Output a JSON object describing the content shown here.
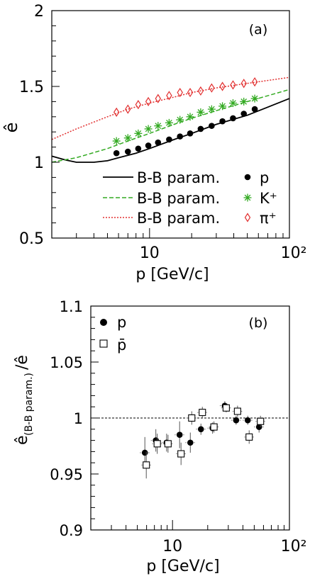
{
  "chart_data": [
    {
      "type": "line",
      "panel_label": "(a)",
      "xlabel": "p [GeV/c]",
      "ylabel": "ê",
      "x_scale": "log",
      "xlim": [
        2,
        100
      ],
      "ylim": [
        0.5,
        2
      ],
      "x_tick_labels": [
        "10",
        "10²"
      ],
      "y_tick_labels": [
        "0.5",
        "1",
        "1.5",
        "2"
      ],
      "legend_position": "bottom-right",
      "legend": [
        {
          "line_label": "B-B param.",
          "marker_label": "p",
          "color": "#000000",
          "line_style": "solid",
          "marker": "filled-circle"
        },
        {
          "line_label": "B-B param.",
          "marker_label": "K⁺",
          "color": "#33aa22",
          "line_style": "dashed",
          "marker": "star"
        },
        {
          "line_label": "B-B param.",
          "marker_label": "π⁺",
          "color": "#e23030",
          "line_style": "dotted",
          "marker": "open-diamond"
        }
      ],
      "series": [
        {
          "name": "p",
          "color": "#000000",
          "curve": {
            "x": [
              2,
              2.5,
              3,
              3.5,
              4,
              5,
              6,
              8,
              10,
              15,
              20,
              30,
              50,
              100
            ],
            "y": [
              1.04,
              1.015,
              1.0,
              1.0,
              1.0,
              1.01,
              1.03,
              1.06,
              1.09,
              1.15,
              1.19,
              1.25,
              1.31,
              1.42
            ]
          },
          "points": {
            "x": [
              5.8,
              7.0,
              8.3,
              9.8,
              11.5,
              13.8,
              16.5,
              19.5,
              23.2,
              27.8,
              33.2,
              39.5,
              47.2,
              56.5
            ],
            "y": [
              1.06,
              1.07,
              1.09,
              1.11,
              1.13,
              1.15,
              1.17,
              1.19,
              1.22,
              1.24,
              1.27,
              1.29,
              1.32,
              1.35
            ]
          }
        },
        {
          "name": "K⁺",
          "color": "#33aa22",
          "curve": {
            "x": [
              2,
              3,
              5,
              7,
              10,
              15,
              20,
              30,
              50,
              100
            ],
            "y": [
              1.0,
              1.03,
              1.09,
              1.14,
              1.19,
              1.25,
              1.29,
              1.34,
              1.4,
              1.48
            ]
          },
          "points": {
            "x": [
              5.8,
              7.0,
              8.3,
              9.8,
              11.5,
              13.8,
              16.5,
              19.5,
              23.2,
              27.8,
              33.2,
              39.5,
              47.2,
              56.5
            ],
            "y": [
              1.14,
              1.16,
              1.19,
              1.22,
              1.24,
              1.26,
              1.28,
              1.3,
              1.33,
              1.35,
              1.37,
              1.39,
              1.4,
              1.42
            ]
          }
        },
        {
          "name": "π⁺",
          "color": "#e23030",
          "curve": {
            "x": [
              2,
              3,
              5,
              7,
              10,
              15,
              20,
              30,
              50,
              100
            ],
            "y": [
              1.15,
              1.22,
              1.3,
              1.35,
              1.39,
              1.43,
              1.46,
              1.49,
              1.52,
              1.56
            ]
          },
          "points": {
            "x": [
              5.8,
              7.0,
              8.3,
              9.8,
              11.5,
              13.8,
              16.5,
              19.5,
              23.2,
              27.8,
              33.2,
              39.5,
              47.2,
              56.5
            ],
            "y": [
              1.33,
              1.35,
              1.38,
              1.4,
              1.42,
              1.44,
              1.46,
              1.46,
              1.47,
              1.49,
              1.5,
              1.51,
              1.52,
              1.53
            ]
          }
        }
      ]
    },
    {
      "type": "scatter",
      "panel_label": "(b)",
      "xlabel": "p [GeV/c]",
      "ylabel_main": "ê",
      "ylabel_sub": "(B-B param.)",
      "ylabel_tail": "/ê",
      "x_scale": "log",
      "xlim": [
        2,
        100
      ],
      "ylim": [
        0.9,
        1.1
      ],
      "x_tick_labels": [
        "10",
        "10²"
      ],
      "y_tick_labels": [
        "0.9",
        "0.95",
        "1",
        "1.05",
        "1.1"
      ],
      "reference_line": 1,
      "legend_position": "top-left",
      "legend": [
        {
          "label": "p",
          "marker": "filled-circle"
        },
        {
          "label": "p̄",
          "marker": "open-square"
        }
      ],
      "series": [
        {
          "name": "p",
          "marker": "filled-circle",
          "x": [
            5.8,
            7.2,
            8.9,
            11.5,
            14.2,
            17.5,
            22.0,
            28.0,
            35.0,
            44.0,
            55.0
          ],
          "y": [
            0.969,
            0.98,
            0.978,
            0.985,
            0.978,
            0.99,
            0.991,
            1.011,
            0.998,
            0.998,
            0.992
          ],
          "err": [
            0.014,
            0.01,
            0.008,
            0.012,
            0.009,
            0.005,
            0.005,
            0.004,
            0.004,
            0.004,
            0.005
          ]
        },
        {
          "name": "p̄",
          "marker": "open-square",
          "x": [
            5.8,
            7.2,
            8.9,
            11.5,
            14.2,
            17.5,
            22.0,
            28.0,
            35.0,
            44.0,
            55.0
          ],
          "y": [
            0.958,
            0.977,
            0.977,
            0.968,
            1.0,
            1.005,
            0.992,
            1.009,
            1.006,
            0.983,
            0.997
          ],
          "err": [
            0.012,
            0.009,
            0.008,
            0.01,
            0.006,
            0.005,
            0.005,
            0.004,
            0.005,
            0.006,
            0.005
          ]
        }
      ]
    }
  ]
}
